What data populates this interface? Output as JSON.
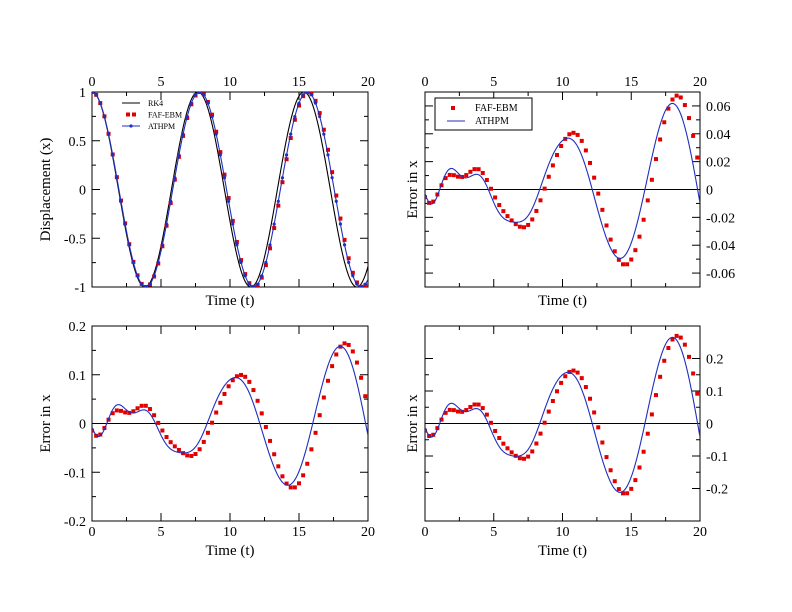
{
  "chart_data": [
    {
      "id": "top-left",
      "type": "line",
      "title": "",
      "xlabel": "Time (t)",
      "ylabel": "Displacement (x)",
      "xlim": [
        0,
        20
      ],
      "ylim": [
        -1,
        1
      ],
      "x_ticks": [
        0,
        5,
        10,
        15,
        20
      ],
      "x_tick_labels": [
        "0",
        "5",
        "10",
        "15",
        "20"
      ],
      "y_ticks": [
        -1,
        -0.5,
        0,
        0.5,
        1
      ],
      "y_tick_labels": [
        "-1",
        "-0.5",
        "0",
        "0.5",
        "1"
      ],
      "x_tick_side": "top",
      "y_tick_side": "left",
      "zero_line": false,
      "legend": {
        "placement": "top-left",
        "entries": [
          "RK4",
          "FAF-EBM",
          "ATHPM"
        ]
      },
      "series": [
        {
          "name": "RK4",
          "style": "line",
          "color": "#000000",
          "model": "cos",
          "params": {
            "omega": 0.8185
          }
        },
        {
          "name": "FAF-EBM",
          "style": "markers",
          "color": "#e00000",
          "model": "cos",
          "params": {
            "omega": 0.8022
          }
        },
        {
          "name": "ATHPM",
          "style": "line-markers",
          "color": "#1f2fbf",
          "model": "cos",
          "params": {
            "omega": 0.8055
          }
        }
      ]
    },
    {
      "id": "top-right",
      "type": "line",
      "title": "",
      "xlabel": "Time (t)",
      "ylabel": "Error in x",
      "xlim": [
        0,
        20
      ],
      "ylim": [
        -0.07,
        0.07
      ],
      "x_ticks": [
        0,
        5,
        10,
        15,
        20
      ],
      "x_tick_labels": [
        "0",
        "5",
        "10",
        "15",
        "20"
      ],
      "y_ticks": [
        -0.06,
        -0.04,
        -0.02,
        0,
        0.02,
        0.04,
        0.06
      ],
      "y_tick_labels": [
        "-0.06",
        "-0.04",
        "-0.02",
        "0",
        "0.02",
        "0.04",
        "0.06"
      ],
      "x_tick_side": "top",
      "y_tick_side": "right",
      "zero_line": true,
      "legend": {
        "placement": "top-left",
        "entries": [
          "FAF-EBM",
          "ATHPM"
        ]
      },
      "series": [
        {
          "name": "FAF-EBM",
          "style": "markers",
          "color": "#e00000",
          "model": "error",
          "params": {
            "a": 0.0035,
            "b": 0.3,
            "c": 0.0095,
            "w": 1.2,
            "ph": 3.5,
            "tau": 0.8
          }
        },
        {
          "name": "ATHPM",
          "style": "line",
          "color": "#1f2fbf",
          "model": "error",
          "params": {
            "a": 0.0032,
            "b": 0.4,
            "c": 0.0125,
            "w": 1.2,
            "ph": 3.2,
            "tau": 0.8
          }
        }
      ]
    },
    {
      "id": "bottom-left",
      "type": "line",
      "title": "",
      "xlabel": "Time (t)",
      "ylabel": "Error in x",
      "xlim": [
        0,
        20
      ],
      "ylim": [
        -0.2,
        0.2
      ],
      "x_ticks": [
        0,
        5,
        10,
        15,
        20
      ],
      "x_tick_labels": [
        "0",
        "5",
        "10",
        "15",
        "20"
      ],
      "y_ticks": [
        -0.2,
        -0.1,
        0,
        0.1,
        0.2
      ],
      "y_tick_labels": [
        "-0.2",
        "-0.1",
        "0",
        "0.1",
        "0.2"
      ],
      "x_tick_side": "bottom",
      "y_tick_side": "left",
      "zero_line": true,
      "legend": null,
      "series": [
        {
          "name": "FAF-EBM",
          "style": "markers",
          "color": "#e00000",
          "model": "error",
          "params": {
            "a": 0.0085,
            "b": 0.3,
            "c": 0.025,
            "w": 1.2,
            "ph": 3.5,
            "tau": 0.8
          }
        },
        {
          "name": "ATHPM",
          "style": "line",
          "color": "#1f2fbf",
          "model": "error",
          "params": {
            "a": 0.0082,
            "b": 0.4,
            "c": 0.032,
            "w": 1.2,
            "ph": 3.2,
            "tau": 0.8
          }
        }
      ]
    },
    {
      "id": "bottom-right",
      "type": "line",
      "title": "",
      "xlabel": "Time (t)",
      "ylabel": "Error in x",
      "xlim": [
        0,
        20
      ],
      "ylim": [
        -0.3,
        0.3
      ],
      "x_ticks": [
        0,
        5,
        10,
        15,
        20
      ],
      "x_tick_labels": [
        "0",
        "5",
        "10",
        "15",
        "20"
      ],
      "y_ticks": [
        -0.2,
        -0.1,
        0,
        0.1,
        0.2
      ],
      "y_tick_labels": [
        "-0.2",
        "-0.1",
        "0",
        "0.1",
        "0.2"
      ],
      "x_tick_side": "bottom",
      "y_tick_side": "right",
      "zero_line": true,
      "legend": null,
      "series": [
        {
          "name": "FAF-EBM",
          "style": "markers",
          "color": "#e00000",
          "model": "error",
          "params": {
            "a": 0.014,
            "b": 0.3,
            "c": 0.038,
            "w": 1.2,
            "ph": 3.5,
            "tau": 0.8
          }
        },
        {
          "name": "ATHPM",
          "style": "line",
          "color": "#1f2fbf",
          "model": "error",
          "params": {
            "a": 0.0138,
            "b": 0.4,
            "c": 0.05,
            "w": 1.2,
            "ph": 3.2,
            "tau": 0.8
          }
        }
      ]
    }
  ]
}
